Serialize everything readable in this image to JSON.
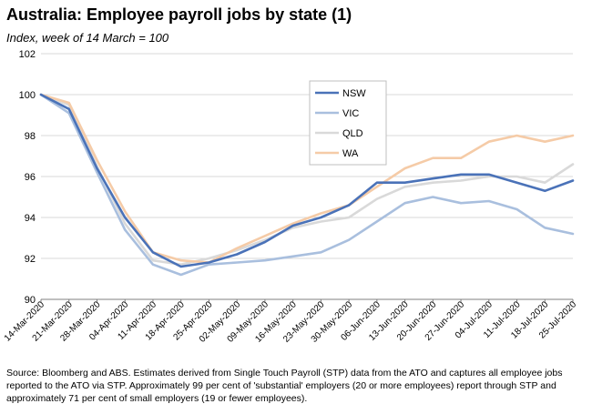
{
  "title": "Australia:  Employee payroll jobs by state (1)",
  "subtitle": "Index, week of 14 March = 100",
  "source_note": "Source: Bloomberg and ABS.  Estimates derived from Single Touch Payroll (STP) data from the ATO and captures all employee jobs reported to the ATO via STP.  Approximately 99 per cent of 'substantial' employers (20 or more employees) report through STP and approximately 71 per cent of small employers (19 or fewer employees).",
  "chart_data": {
    "type": "line",
    "categories": [
      "14-Mar-2020",
      "21-Mar-2020",
      "28-Mar-2020",
      "04-Apr-2020",
      "11-Apr-2020",
      "18-Apr-2020",
      "25-Apr-2020",
      "02-May-2020",
      "09-May-2020",
      "16-May-2020",
      "23-May-2020",
      "30-May-2020",
      "06-Jun-2020",
      "13-Jun-2020",
      "20-Jun-2020",
      "27-Jun-2020",
      "04-Jul-2020",
      "11-Jul-2020",
      "18-Jul-2020",
      "25-Jul-2020"
    ],
    "ylim": [
      90,
      102
    ],
    "yticks": [
      90,
      92,
      94,
      96,
      98,
      100,
      102
    ],
    "grid": true,
    "legend_position": "center",
    "series": [
      {
        "name": "NSW",
        "color": "#4a72b8",
        "width": 2.6,
        "values": [
          100.0,
          99.3,
          96.4,
          94.0,
          92.3,
          91.6,
          91.8,
          92.2,
          92.8,
          93.6,
          94.0,
          94.6,
          95.7,
          95.7,
          95.9,
          96.1,
          96.1,
          95.7,
          95.3,
          95.8
        ]
      },
      {
        "name": "VIC",
        "color": "#a9bfde",
        "width": 2.6,
        "values": [
          100.0,
          99.1,
          96.2,
          93.4,
          91.7,
          91.2,
          91.7,
          91.8,
          91.9,
          92.1,
          92.3,
          92.9,
          93.8,
          94.7,
          95.0,
          94.7,
          94.8,
          94.4,
          93.5,
          93.2
        ]
      },
      {
        "name": "QLD",
        "color": "#d9d9d9",
        "width": 2.6,
        "values": [
          100.0,
          99.5,
          96.5,
          93.7,
          91.9,
          91.7,
          92.0,
          92.4,
          92.9,
          93.5,
          93.8,
          94.0,
          94.9,
          95.5,
          95.7,
          95.8,
          96.0,
          96.0,
          95.7,
          96.6
        ]
      },
      {
        "name": "WA",
        "color": "#f5cba7",
        "width": 2.6,
        "values": [
          100.0,
          99.6,
          96.8,
          94.3,
          92.3,
          91.9,
          91.8,
          92.5,
          93.1,
          93.7,
          94.2,
          94.6,
          95.5,
          96.4,
          96.9,
          96.9,
          97.7,
          98.0,
          97.7,
          98.0
        ]
      }
    ]
  }
}
